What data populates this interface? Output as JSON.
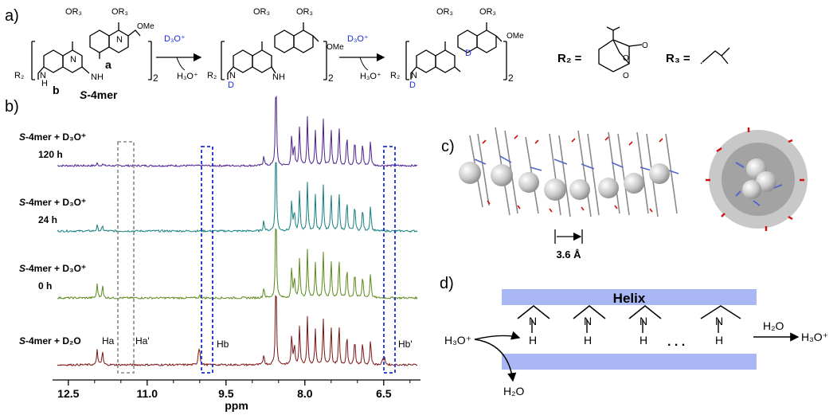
{
  "panels": {
    "a": "a)",
    "b": "b)",
    "c": "c)",
    "d": "d)"
  },
  "scheme": {
    "or3": "OR₃",
    "ome": "OMe",
    "r2": "R₂",
    "n": "N",
    "nh": "NH",
    "h": "H",
    "d": "D",
    "o": "O",
    "a_label": "a",
    "b_label": "b",
    "subscript": "2",
    "s4mer_prefix": "S",
    "s4mer_suffix": "-4mer",
    "reagent_top": "D₃O⁺",
    "reagent_bottom": "H₃O⁺",
    "r2_eq": "R₂ =",
    "r3_eq": "R₃ ="
  },
  "nmr": {
    "spectra": [
      {
        "prefix": "S",
        "label": "-4mer + D₃O⁺",
        "time": "120 h",
        "color": "#4b1f8f"
      },
      {
        "prefix": "S",
        "label": "-4mer + D₃O⁺",
        "time": "24 h",
        "color": "#127f7f"
      },
      {
        "prefix": "S",
        "label": "-4mer + D₃O⁺",
        "time": "0 h",
        "color": "#5a8a1a"
      },
      {
        "prefix": "S",
        "label": "-4mer + D₂O",
        "time": "",
        "color": "#7a1414"
      }
    ],
    "peak_labels": {
      "ha": "Ha",
      "ha_prime": "Ha'",
      "hb": "Hb",
      "hb_prime": "Hb'"
    },
    "axis": {
      "ticks": [
        "12.5",
        "11.0",
        "9.5",
        "8.0",
        "6.5"
      ],
      "minor_ticks": [
        "12.0",
        "11.5",
        "10.5",
        "10.0",
        "9.0",
        "8.5",
        "7.5",
        "7.0",
        "6.0"
      ],
      "xlabel": "ppm",
      "range_ppm": [
        12.8,
        5.8
      ]
    }
  },
  "crystal": {
    "distance": "3.6 Å"
  },
  "mechanism": {
    "helix": "Helix",
    "h3o_in": "H₃O⁺",
    "h2o_out": "H₂O",
    "h2o_right": "H₂O",
    "h3o_out": "H₃O⁺",
    "n": "N",
    "h": "H",
    "ellipsis": ". . ."
  }
}
